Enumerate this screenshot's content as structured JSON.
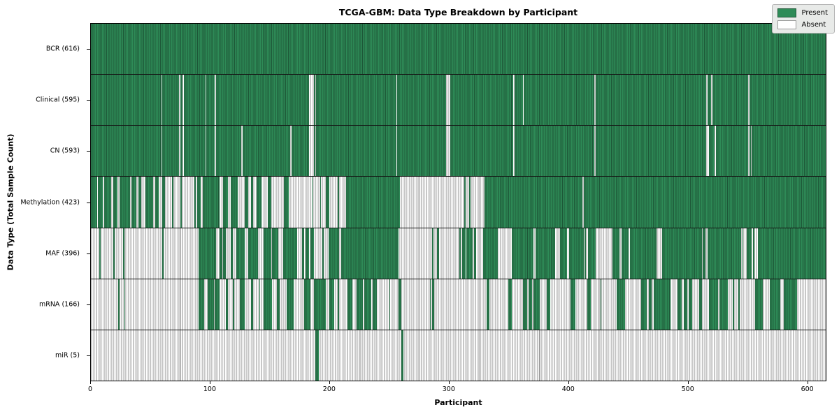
{
  "title": "TCGA-GBM: Data Type Breakdown by Participant",
  "x_axis": {
    "label": "Participant",
    "ticks": [
      0,
      100,
      200,
      300,
      400,
      500,
      600
    ]
  },
  "y_axis": {
    "label": "Data Type (Total Sample Count)"
  },
  "legend": {
    "items": [
      {
        "label": "Present",
        "color": "#2e8b57"
      },
      {
        "label": "Absent",
        "color": "#ffffff"
      }
    ]
  },
  "colors": {
    "present": "#2e8b57",
    "present_edge": "#1d5737",
    "absent": "#ffffff",
    "absent_edge": "#8f8f8f",
    "legend_bg": "#e8eae8"
  },
  "chart_data": {
    "type": "heatmap",
    "title": "TCGA-GBM: Data Type Breakdown by Participant",
    "xlabel": "Participant",
    "ylabel": "Data Type (Total Sample Count)",
    "x_range": [
      0,
      616
    ],
    "x_ticks": [
      0,
      100,
      200,
      300,
      400,
      500,
      600
    ],
    "legend_position": "upper right",
    "cell_values": {
      "present": 1,
      "absent": 0
    },
    "rows": [
      {
        "name": "BCR",
        "count": 616,
        "label": "BCR (616)",
        "present_runs": [
          [
            0,
            616
          ]
        ]
      },
      {
        "name": "Clinical",
        "count": 595,
        "label": "Clinical (595)",
        "present_runs": [
          [
            0,
            59
          ],
          [
            60,
            74
          ],
          [
            75,
            77
          ],
          [
            78,
            96
          ],
          [
            97,
            104
          ],
          [
            105,
            183
          ],
          [
            187,
            188
          ],
          [
            189,
            256
          ],
          [
            257,
            298
          ],
          [
            301,
            354
          ],
          [
            355,
            362
          ],
          [
            363,
            422
          ],
          [
            423,
            516
          ],
          [
            517,
            520
          ],
          [
            521,
            551
          ],
          [
            552,
            616
          ]
        ]
      },
      {
        "name": "CN",
        "count": 593,
        "label": "CN (593)",
        "present_runs": [
          [
            0,
            59
          ],
          [
            60,
            74
          ],
          [
            75,
            77
          ],
          [
            78,
            96
          ],
          [
            97,
            104
          ],
          [
            105,
            126
          ],
          [
            127,
            167
          ],
          [
            168,
            183
          ],
          [
            187,
            188
          ],
          [
            189,
            256
          ],
          [
            257,
            298
          ],
          [
            301,
            354
          ],
          [
            355,
            422
          ],
          [
            423,
            516
          ],
          [
            518,
            523
          ],
          [
            524,
            551
          ],
          [
            552,
            553
          ],
          [
            554,
            616
          ]
        ]
      },
      {
        "name": "Methylation",
        "count": 423,
        "label": "Methylation (423)",
        "present_runs": [
          [
            0,
            5
          ],
          [
            6,
            10
          ],
          [
            11,
            17
          ],
          [
            19,
            22
          ],
          [
            24,
            33
          ],
          [
            34,
            38
          ],
          [
            40,
            42
          ],
          [
            46,
            52
          ],
          [
            54,
            57
          ],
          [
            60,
            62
          ],
          [
            68,
            69
          ],
          [
            75,
            76
          ],
          [
            87,
            88
          ],
          [
            89,
            92
          ],
          [
            94,
            108
          ],
          [
            111,
            115
          ],
          [
            117,
            123
          ],
          [
            129,
            132
          ],
          [
            134,
            136
          ],
          [
            139,
            143
          ],
          [
            148,
            151
          ],
          [
            162,
            166
          ],
          [
            185,
            186
          ],
          [
            192,
            193
          ],
          [
            197,
            200
          ],
          [
            207,
            208
          ],
          [
            214,
            259
          ],
          [
            313,
            314
          ],
          [
            317,
            318
          ],
          [
            330,
            412
          ],
          [
            413,
            616
          ]
        ]
      },
      {
        "name": "MAF",
        "count": 396,
        "label": "MAF (396)",
        "present_runs": [
          [
            7,
            8
          ],
          [
            19,
            20
          ],
          [
            27,
            28
          ],
          [
            60,
            61
          ],
          [
            90,
            105
          ],
          [
            108,
            110
          ],
          [
            111,
            113
          ],
          [
            117,
            119
          ],
          [
            122,
            129
          ],
          [
            132,
            140
          ],
          [
            145,
            151
          ],
          [
            152,
            157
          ],
          [
            161,
            173
          ],
          [
            177,
            179
          ],
          [
            180,
            183
          ],
          [
            184,
            187
          ],
          [
            194,
            195
          ],
          [
            199,
            208
          ],
          [
            210,
            258
          ],
          [
            286,
            287
          ],
          [
            290,
            292
          ],
          [
            309,
            310
          ],
          [
            311,
            314
          ],
          [
            315,
            320
          ],
          [
            321,
            323
          ],
          [
            329,
            341
          ],
          [
            353,
            371
          ],
          [
            373,
            389
          ],
          [
            393,
            399
          ],
          [
            401,
            413
          ],
          [
            414,
            415
          ],
          [
            417,
            423
          ],
          [
            437,
            443
          ],
          [
            445,
            451
          ],
          [
            452,
            474
          ],
          [
            479,
            512
          ],
          [
            513,
            515
          ],
          [
            517,
            545
          ],
          [
            546,
            547
          ],
          [
            550,
            554
          ],
          [
            555,
            556
          ],
          [
            559,
            616
          ]
        ]
      },
      {
        "name": "mRNA",
        "count": 166,
        "label": "mRNA (166)",
        "present_runs": [
          [
            23,
            24
          ],
          [
            28,
            29
          ],
          [
            90,
            95
          ],
          [
            98,
            103
          ],
          [
            104,
            108
          ],
          [
            113,
            115
          ],
          [
            119,
            120
          ],
          [
            125,
            129
          ],
          [
            134,
            136
          ],
          [
            141,
            142
          ],
          [
            145,
            152
          ],
          [
            156,
            158
          ],
          [
            164,
            170
          ],
          [
            179,
            184
          ],
          [
            187,
            197
          ],
          [
            200,
            204
          ],
          [
            207,
            208
          ],
          [
            215,
            219
          ],
          [
            223,
            228
          ],
          [
            229,
            235
          ],
          [
            236,
            240
          ],
          [
            250,
            251
          ],
          [
            258,
            260
          ],
          [
            284,
            285
          ],
          [
            286,
            288
          ],
          [
            332,
            334
          ],
          [
            350,
            353
          ],
          [
            362,
            366
          ],
          [
            367,
            370
          ],
          [
            371,
            376
          ],
          [
            382,
            385
          ],
          [
            402,
            406
          ],
          [
            416,
            419
          ],
          [
            427,
            428
          ],
          [
            441,
            448
          ],
          [
            461,
            466
          ],
          [
            468,
            470
          ],
          [
            472,
            486
          ],
          [
            492,
            495
          ],
          [
            497,
            500
          ],
          [
            501,
            504
          ],
          [
            510,
            512
          ],
          [
            518,
            526
          ],
          [
            527,
            534
          ],
          [
            538,
            539
          ],
          [
            543,
            544
          ],
          [
            557,
            563
          ],
          [
            569,
            578
          ],
          [
            581,
            592
          ]
        ]
      },
      {
        "name": "miR",
        "count": 5,
        "label": "miR (5)",
        "present_runs": [
          [
            188,
            191
          ],
          [
            260,
            262
          ]
        ]
      }
    ]
  }
}
